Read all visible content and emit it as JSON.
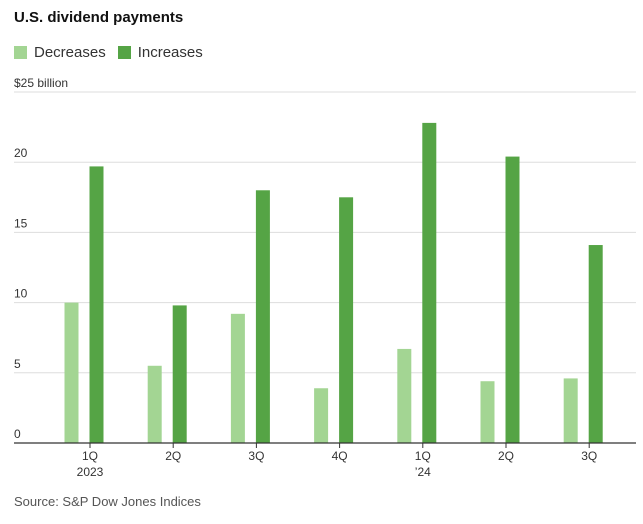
{
  "chart_data": {
    "type": "bar",
    "title": "U.S. dividend payments",
    "xlabel": "",
    "ylabel": "",
    "unit_label": "$25 billion",
    "ylim": [
      0,
      25
    ],
    "yticks": [
      0,
      5,
      10,
      15,
      20,
      25
    ],
    "ytick_labels": [
      "0",
      "5",
      "10",
      "15",
      "20",
      "$25 billion"
    ],
    "categories": [
      "1Q",
      "2Q",
      "3Q",
      "4Q",
      "1Q",
      "2Q",
      "3Q"
    ],
    "category_sublabels": [
      "2023",
      "",
      "",
      "",
      "’24",
      "",
      ""
    ],
    "series": [
      {
        "name": "Decreases",
        "color": "#a3d593",
        "values": [
          10.0,
          5.5,
          9.2,
          3.9,
          6.7,
          4.4,
          4.6
        ]
      },
      {
        "name": "Increases",
        "color": "#55a445",
        "values": [
          19.7,
          9.8,
          18.0,
          17.5,
          22.8,
          20.4,
          14.1
        ]
      }
    ],
    "source": "Source: S&P Dow Jones Indices"
  }
}
